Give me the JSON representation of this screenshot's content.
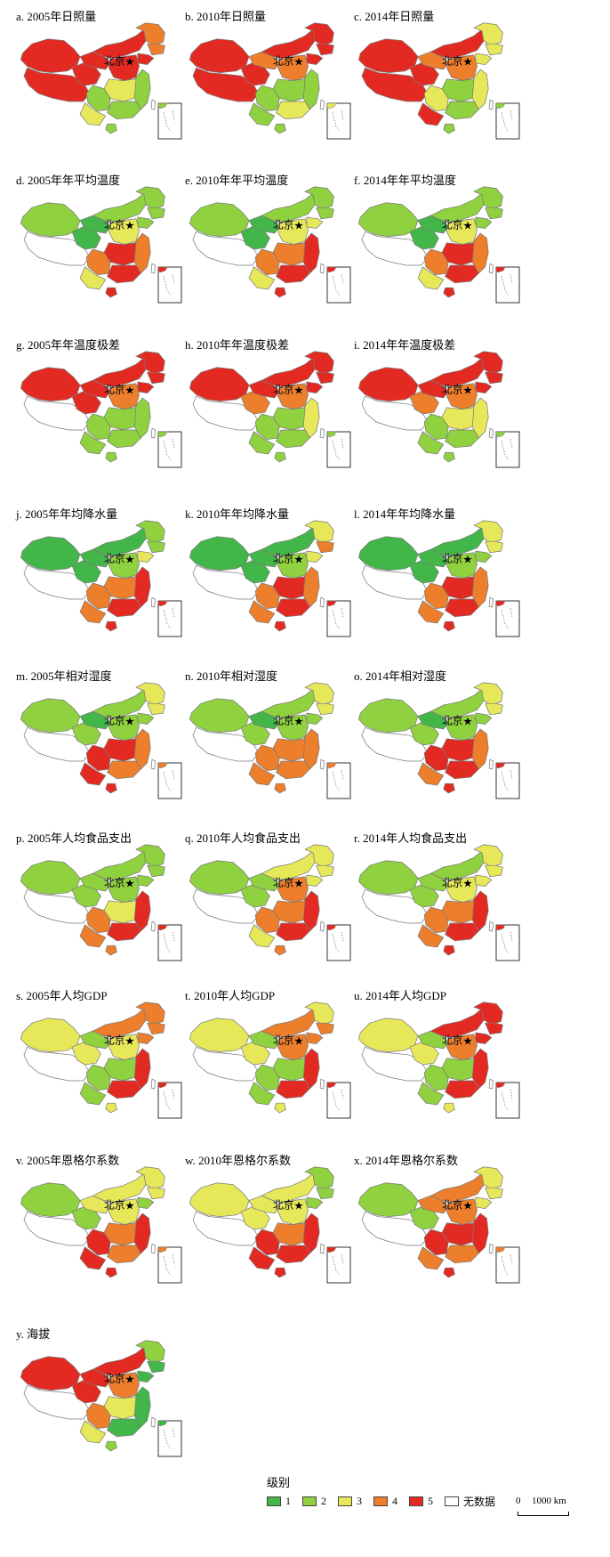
{
  "colors": {
    "c1": "#43b649",
    "c2": "#8fd13f",
    "c3": "#e6e85a",
    "c4": "#ec7e2c",
    "c5": "#e32a22",
    "nodata": "#ffffff",
    "border": "#7a7a7a"
  },
  "beijing_label": "北京",
  "legend": {
    "title": "级别",
    "classes": [
      {
        "label": "1",
        "color": "#43b649"
      },
      {
        "label": "2",
        "color": "#8fd13f"
      },
      {
        "label": "3",
        "color": "#e6e85a"
      },
      {
        "label": "4",
        "color": "#ec7e2c"
      },
      {
        "label": "5",
        "color": "#e32a22"
      },
      {
        "label": "无数据",
        "color": "#ffffff"
      }
    ]
  },
  "scalebar": {
    "zero": "0",
    "distance": "1000 km"
  },
  "panels": [
    {
      "title": "a. 2005年日照量",
      "levels": {
        "xinjiang": 5,
        "tibet": 5,
        "qinghai": 5,
        "gansu": 5,
        "inner_mongolia": 5,
        "heilongjiang": 4,
        "jilin": 4,
        "liaoning": 5,
        "north": 5,
        "east": 2,
        "central": 3,
        "south": 2,
        "southwest": 2,
        "yunnan": 3,
        "hainan": 2,
        "taiwan": 0
      }
    },
    {
      "title": "b. 2010年日照量",
      "levels": {
        "xinjiang": 5,
        "tibet": 5,
        "qinghai": 5,
        "gansu": 4,
        "inner_mongolia": 5,
        "heilongjiang": 5,
        "jilin": 5,
        "liaoning": 5,
        "north": 4,
        "east": 2,
        "central": 2,
        "south": 3,
        "southwest": 2,
        "yunnan": 2,
        "hainan": 2,
        "taiwan": 0
      }
    },
    {
      "title": "c. 2014年日照量",
      "levels": {
        "xinjiang": 5,
        "tibet": 5,
        "qinghai": 5,
        "gansu": 4,
        "inner_mongolia": 5,
        "heilongjiang": 3,
        "jilin": 3,
        "liaoning": 3,
        "north": 4,
        "east": 3,
        "central": 2,
        "south": 2,
        "southwest": 3,
        "yunnan": 5,
        "hainan": 2,
        "taiwan": 0
      }
    },
    {
      "title": "d. 2005年年平均温度",
      "levels": {
        "xinjiang": 2,
        "tibet": 0,
        "qinghai": 1,
        "gansu": 1,
        "inner_mongolia": 2,
        "heilongjiang": 2,
        "jilin": 2,
        "liaoning": 2,
        "north": 3,
        "east": 4,
        "central": 5,
        "south": 5,
        "southwest": 4,
        "yunnan": 3,
        "hainan": 5,
        "taiwan": 0
      }
    },
    {
      "title": "e. 2010年年平均温度",
      "levels": {
        "xinjiang": 2,
        "tibet": 0,
        "qinghai": 1,
        "gansu": 1,
        "inner_mongolia": 2,
        "heilongjiang": 2,
        "jilin": 2,
        "liaoning": 3,
        "north": 3,
        "east": 5,
        "central": 4,
        "south": 5,
        "southwest": 4,
        "yunnan": 3,
        "hainan": 5,
        "taiwan": 0
      }
    },
    {
      "title": "f. 2014年年平均温度",
      "levels": {
        "xinjiang": 2,
        "tibet": 0,
        "qinghai": 1,
        "gansu": 1,
        "inner_mongolia": 2,
        "heilongjiang": 2,
        "jilin": 2,
        "liaoning": 2,
        "north": 3,
        "east": 4,
        "central": 5,
        "south": 5,
        "southwest": 4,
        "yunnan": 3,
        "hainan": 5,
        "taiwan": 0
      }
    },
    {
      "title": "g. 2005年年温度极差",
      "levels": {
        "xinjiang": 5,
        "tibet": 0,
        "qinghai": 5,
        "gansu": 5,
        "inner_mongolia": 5,
        "heilongjiang": 5,
        "jilin": 5,
        "liaoning": 5,
        "north": 4,
        "east": 2,
        "central": 2,
        "south": 2,
        "southwest": 2,
        "yunnan": 2,
        "hainan": 2,
        "taiwan": 0
      }
    },
    {
      "title": "h. 2010年年温度极差",
      "levels": {
        "xinjiang": 5,
        "tibet": 0,
        "qinghai": 4,
        "gansu": 5,
        "inner_mongolia": 5,
        "heilongjiang": 5,
        "jilin": 5,
        "liaoning": 5,
        "north": 4,
        "east": 3,
        "central": 2,
        "south": 2,
        "southwest": 2,
        "yunnan": 2,
        "hainan": 2,
        "taiwan": 0
      }
    },
    {
      "title": "i. 2014年年温度极差",
      "levels": {
        "xinjiang": 5,
        "tibet": 0,
        "qinghai": 4,
        "gansu": 5,
        "inner_mongolia": 5,
        "heilongjiang": 5,
        "jilin": 5,
        "liaoning": 5,
        "north": 4,
        "east": 3,
        "central": 3,
        "south": 2,
        "southwest": 2,
        "yunnan": 2,
        "hainan": 2,
        "taiwan": 0
      }
    },
    {
      "title": "j. 2005年年均降水量",
      "levels": {
        "xinjiang": 1,
        "tibet": 0,
        "qinghai": 1,
        "gansu": 1,
        "inner_mongolia": 1,
        "heilongjiang": 2,
        "jilin": 2,
        "liaoning": 3,
        "north": 2,
        "east": 5,
        "central": 4,
        "south": 5,
        "southwest": 4,
        "yunnan": 4,
        "hainan": 5,
        "taiwan": 0
      }
    },
    {
      "title": "k. 2010年年均降水量",
      "levels": {
        "xinjiang": 1,
        "tibet": 0,
        "qinghai": 1,
        "gansu": 1,
        "inner_mongolia": 1,
        "heilongjiang": 3,
        "jilin": 4,
        "liaoning": 3,
        "north": 2,
        "east": 4,
        "central": 5,
        "south": 5,
        "southwest": 4,
        "yunnan": 4,
        "hainan": 5,
        "taiwan": 0
      }
    },
    {
      "title": "l. 2014年年均降水量",
      "levels": {
        "xinjiang": 1,
        "tibet": 0,
        "qinghai": 1,
        "gansu": 1,
        "inner_mongolia": 1,
        "heilongjiang": 3,
        "jilin": 3,
        "liaoning": 2,
        "north": 2,
        "east": 4,
        "central": 5,
        "south": 5,
        "southwest": 4,
        "yunnan": 4,
        "hainan": 5,
        "taiwan": 0
      }
    },
    {
      "title": "m. 2005年相对湿度",
      "levels": {
        "xinjiang": 2,
        "tibet": 0,
        "qinghai": 2,
        "gansu": 1,
        "inner_mongolia": 2,
        "heilongjiang": 3,
        "jilin": 3,
        "liaoning": 2,
        "north": 2,
        "east": 4,
        "central": 5,
        "south": 4,
        "southwest": 5,
        "yunnan": 5,
        "hainan": 5,
        "taiwan": 0
      }
    },
    {
      "title": "n. 2010年相对湿度",
      "levels": {
        "xinjiang": 2,
        "tibet": 0,
        "qinghai": 2,
        "gansu": 1,
        "inner_mongolia": 2,
        "heilongjiang": 3,
        "jilin": 3,
        "liaoning": 2,
        "north": 2,
        "east": 4,
        "central": 4,
        "south": 4,
        "southwest": 4,
        "yunnan": 4,
        "hainan": 4,
        "taiwan": 0
      }
    },
    {
      "title": "o. 2014年相对湿度",
      "levels": {
        "xinjiang": 2,
        "tibet": 0,
        "qinghai": 2,
        "gansu": 1,
        "inner_mongolia": 2,
        "heilongjiang": 3,
        "jilin": 3,
        "liaoning": 2,
        "north": 2,
        "east": 4,
        "central": 5,
        "south": 5,
        "southwest": 5,
        "yunnan": 4,
        "hainan": 5,
        "taiwan": 0
      }
    },
    {
      "title": "p. 2005年人均食品支出",
      "levels": {
        "xinjiang": 2,
        "tibet": 0,
        "qinghai": 2,
        "gansu": 2,
        "inner_mongolia": 2,
        "heilongjiang": 2,
        "jilin": 2,
        "liaoning": 2,
        "north": 2,
        "east": 5,
        "central": 3,
        "south": 5,
        "southwest": 4,
        "yunnan": 4,
        "hainan": 4,
        "taiwan": 0
      }
    },
    {
      "title": "q. 2010年人均食品支出",
      "levels": {
        "xinjiang": 2,
        "tibet": 0,
        "qinghai": 2,
        "gansu": 2,
        "inner_mongolia": 3,
        "heilongjiang": 3,
        "jilin": 3,
        "liaoning": 3,
        "north": 4,
        "east": 5,
        "central": 4,
        "south": 5,
        "southwest": 4,
        "yunnan": 3,
        "hainan": 4,
        "taiwan": 0
      }
    },
    {
      "title": "r. 2014年人均食品支出",
      "levels": {
        "xinjiang": 2,
        "tibet": 0,
        "qinghai": 2,
        "gansu": 2,
        "inner_mongolia": 2,
        "heilongjiang": 3,
        "jilin": 3,
        "liaoning": 3,
        "north": 3,
        "east": 5,
        "central": 4,
        "south": 5,
        "southwest": 4,
        "yunnan": 4,
        "hainan": 5,
        "taiwan": 0
      }
    },
    {
      "title": "s. 2005年人均GDP",
      "levels": {
        "xinjiang": 3,
        "tibet": 0,
        "qinghai": 3,
        "gansu": 2,
        "inner_mongolia": 4,
        "heilongjiang": 4,
        "jilin": 4,
        "liaoning": 4,
        "north": 3,
        "east": 5,
        "central": 2,
        "south": 5,
        "southwest": 2,
        "yunnan": 2,
        "hainan": 3,
        "taiwan": 0
      }
    },
    {
      "title": "t. 2010年人均GDP",
      "levels": {
        "xinjiang": 3,
        "tibet": 0,
        "qinghai": 3,
        "gansu": 2,
        "inner_mongolia": 4,
        "heilongjiang": 3,
        "jilin": 4,
        "liaoning": 4,
        "north": 4,
        "east": 5,
        "central": 2,
        "south": 5,
        "southwest": 2,
        "yunnan": 2,
        "hainan": 3,
        "taiwan": 0
      }
    },
    {
      "title": "u. 2014年人均GDP",
      "levels": {
        "xinjiang": 3,
        "tibet": 0,
        "qinghai": 3,
        "gansu": 2,
        "inner_mongolia": 5,
        "heilongjiang": 5,
        "jilin": 5,
        "liaoning": 5,
        "north": 4,
        "east": 5,
        "central": 2,
        "south": 5,
        "southwest": 2,
        "yunnan": 2,
        "hainan": 3,
        "taiwan": 0
      }
    },
    {
      "title": "v. 2005年恩格尔系数",
      "levels": {
        "xinjiang": 2,
        "tibet": 0,
        "qinghai": 2,
        "gansu": 3,
        "inner_mongolia": 3,
        "heilongjiang": 3,
        "jilin": 3,
        "liaoning": 2,
        "north": 3,
        "east": 5,
        "central": 4,
        "south": 4,
        "southwest": 5,
        "yunnan": 5,
        "hainan": 5,
        "taiwan": 0
      }
    },
    {
      "title": "w. 2010年恩格尔系数",
      "levels": {
        "xinjiang": 3,
        "tibet": 0,
        "qinghai": 3,
        "gansu": 3,
        "inner_mongolia": 3,
        "heilongjiang": 2,
        "jilin": 2,
        "liaoning": 2,
        "north": 3,
        "east": 5,
        "central": 4,
        "south": 5,
        "southwest": 5,
        "yunnan": 5,
        "hainan": 5,
        "taiwan": 0
      }
    },
    {
      "title": "x. 2014年恩格尔系数",
      "levels": {
        "xinjiang": 2,
        "tibet": 0,
        "qinghai": 2,
        "gansu": 4,
        "inner_mongolia": 4,
        "heilongjiang": 3,
        "jilin": 3,
        "liaoning": 3,
        "north": 4,
        "east": 5,
        "central": 5,
        "south": 4,
        "southwest": 5,
        "yunnan": 4,
        "hainan": 5,
        "taiwan": 0
      }
    },
    {
      "title": "y. 海拔",
      "levels": {
        "xinjiang": 5,
        "tibet": 0,
        "qinghai": 5,
        "gansu": 5,
        "inner_mongolia": 5,
        "heilongjiang": 2,
        "jilin": 1,
        "liaoning": 1,
        "north": 4,
        "east": 1,
        "central": 3,
        "south": 1,
        "southwest": 4,
        "yunnan": 3,
        "hainan": 2,
        "taiwan": 0
      }
    }
  ]
}
